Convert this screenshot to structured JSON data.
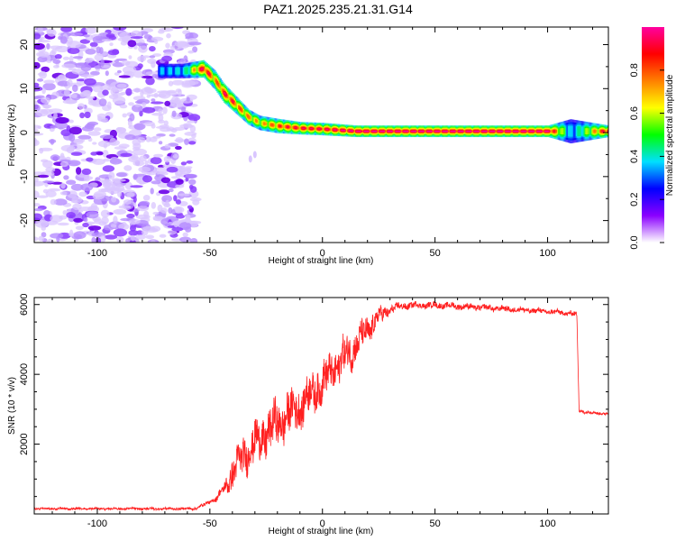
{
  "title": "PAZ1.2025.235.21.31.G14",
  "chart_data": [
    {
      "type": "heatmap",
      "name": "spectrogram",
      "xlabel": "Height of straight line (km)",
      "ylabel": "Frequency (Hz)",
      "xlim": [
        -128,
        127
      ],
      "ylim": [
        -25,
        24
      ],
      "xticks": [
        -100,
        -50,
        0,
        50,
        100
      ],
      "yticks": [
        -20,
        -10,
        0,
        10,
        20
      ],
      "colorbar": {
        "label": "Normalized spectral amplitude",
        "range": [
          0,
          1
        ],
        "ticks": [
          "0.0",
          "0.2",
          "0.4",
          "0.6",
          "0.8"
        ],
        "tick_values": [
          0,
          0.2,
          0.4,
          0.6,
          0.8
        ],
        "colors": [
          "#ffffff",
          "#8a00ff",
          "#0000ff",
          "#00e0ff",
          "#00ff00",
          "#ffff00",
          "#ff8000",
          "#ff0000",
          "#ff00a0"
        ]
      },
      "noise_region": {
        "x": [
          -128,
          -56
        ],
        "y": [
          -25,
          24
        ]
      },
      "signal_track": {
        "x": [
          -73,
          -62,
          -53,
          -48,
          -44,
          -38,
          -33,
          -28,
          -20,
          -10,
          0,
          15,
          100,
          110,
          127
        ],
        "freq": [
          14,
          14,
          14.5,
          12,
          9,
          6,
          3.5,
          2.2,
          1.5,
          1.0,
          0.8,
          0.3,
          0.3,
          0.3,
          0.3
        ],
        "width": [
          1.5,
          1.5,
          1.8,
          2.0,
          2.0,
          1.8,
          1.6,
          1.5,
          1.5,
          1.3,
          1.3,
          1.2,
          1.2,
          2.5,
          1.2
        ],
        "amp": [
          0.45,
          0.5,
          0.9,
          0.75,
          0.85,
          0.8,
          0.75,
          0.7,
          0.8,
          0.85,
          0.85,
          0.95,
          0.95,
          0.45,
          0.9
        ]
      }
    },
    {
      "type": "line",
      "name": "snr",
      "xlabel": "Height of straight line (km)",
      "ylabel": "SNR (10 * v/v)",
      "xlim": [
        -128,
        127
      ],
      "ylim": [
        0,
        6200
      ],
      "xticks": [
        -100,
        -50,
        0,
        50,
        100
      ],
      "yticks": [
        2000,
        4000,
        6000
      ],
      "color": "#ff2020",
      "series": {
        "x": [
          -128,
          -60,
          -56,
          -50,
          -47,
          -44,
          -40,
          -35,
          -30,
          -25,
          -20,
          -15,
          -10,
          -5,
          0,
          5,
          10,
          15,
          20,
          25,
          30,
          35,
          40,
          45,
          50,
          55,
          60,
          70,
          80,
          90,
          100,
          110,
          113,
          114,
          120,
          127
        ],
        "y": [
          150,
          150,
          160,
          350,
          450,
          700,
          1150,
          1700,
          2000,
          2300,
          2600,
          2850,
          3100,
          3450,
          3750,
          4150,
          4500,
          4850,
          5250,
          5650,
          5850,
          5950,
          5980,
          5980,
          5980,
          5970,
          5950,
          5920,
          5880,
          5840,
          5800,
          5750,
          5700,
          2950,
          2900,
          2870
        ]
      },
      "noise_amplitude": {
        "x": [
          -128,
          -56,
          -50,
          -44,
          -40,
          -30,
          -20,
          -10,
          0,
          10,
          20,
          30,
          40,
          60,
          100,
          113,
          114,
          127
        ],
        "y": [
          30,
          40,
          60,
          150,
          500,
          650,
          700,
          650,
          600,
          600,
          450,
          150,
          100,
          100,
          80,
          80,
          50,
          50
        ]
      }
    }
  ]
}
